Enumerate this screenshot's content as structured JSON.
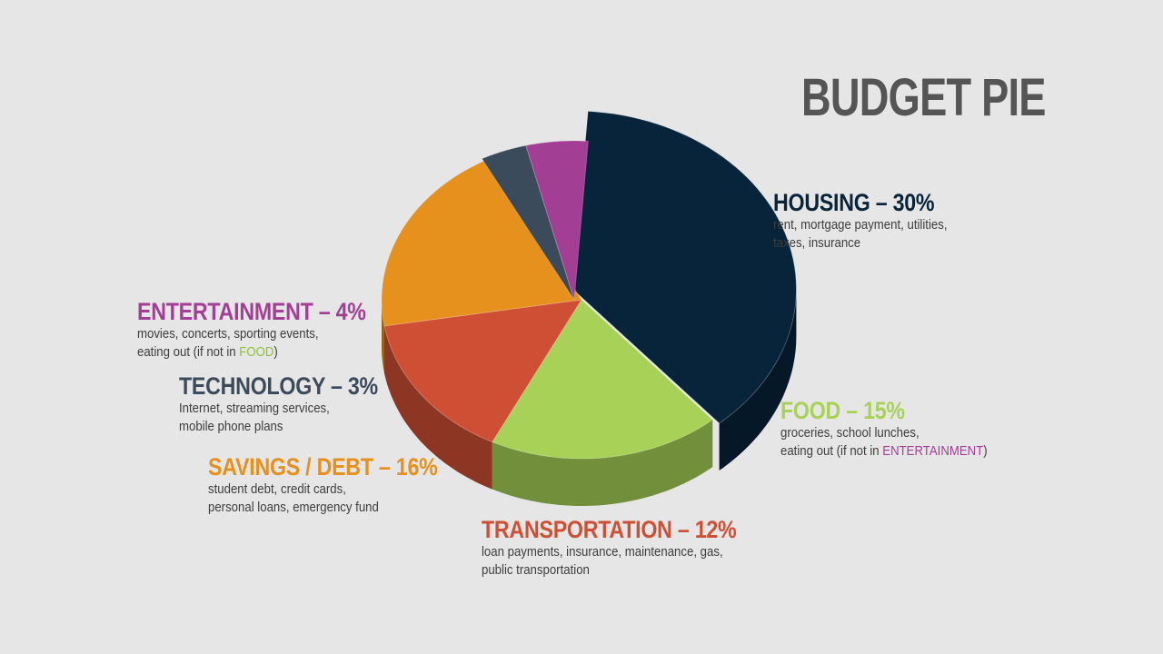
{
  "chart_data": {
    "type": "pie",
    "title": "BUDGET PIE",
    "slices": [
      {
        "label": "HOUSING",
        "value": 30,
        "value_label": "30%",
        "desc_lines": [
          "rent, mortgage payment, utilities,",
          "taxes, insurance"
        ],
        "color": "#07243a"
      },
      {
        "label": "FOOD",
        "value": 15,
        "value_label": "15%",
        "desc_lines": [
          "groceries, school lunches,",
          "eating out (if not in "
        ],
        "desc_highlight": "ENTERTAINMENT",
        "desc_tail": ")",
        "color": "#a8d257"
      },
      {
        "label": "TRANSPORTATION",
        "value": 12,
        "value_label": "12%",
        "desc_lines": [
          "loan payments, insurance, maintenance, gas,",
          "public transportation"
        ],
        "color": "#cf4f35"
      },
      {
        "label": "SAVINGS / DEBT",
        "value": 16,
        "value_label": "16%",
        "desc_lines": [
          "student debt, credit cards,",
          "personal loans, emergency fund"
        ],
        "color": "#e6901e"
      },
      {
        "label": "TECHNOLOGY",
        "value": 3,
        "value_label": "3%",
        "desc_lines": [
          "Internet, streaming services,",
          "mobile phone plans"
        ],
        "color": "#3b4b5c"
      },
      {
        "label": "ENTERTAINMENT",
        "value": 4,
        "value_label": "4%",
        "desc_lines": [
          "movies, concerts, sporting events,",
          "eating out (if not in "
        ],
        "desc_highlight": "FOOD",
        "desc_tail": ")",
        "color": "#a23e94"
      }
    ]
  },
  "separator": " – "
}
